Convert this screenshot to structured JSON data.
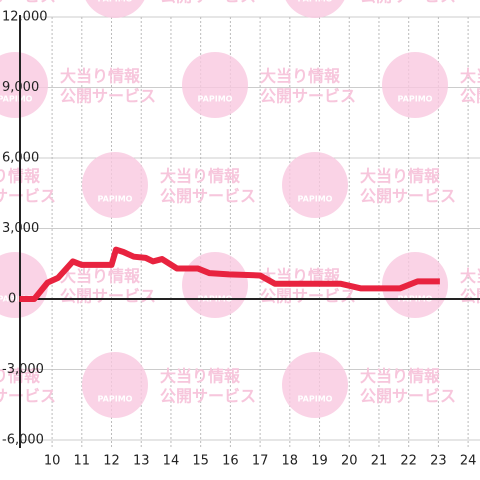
{
  "chart_data": {
    "type": "line",
    "x": [
      8.9,
      9.4,
      9.85,
      10.2,
      10.7,
      11.0,
      12.0,
      12.15,
      12.4,
      12.75,
      13.15,
      13.4,
      13.7,
      14.2,
      14.9,
      15.3,
      15.95,
      17.0,
      17.5,
      19.7,
      20.4,
      21.7,
      22.3,
      23.05
    ],
    "series": [
      {
        "color": "#e8233f",
        "values": [
          0,
          0,
          700,
          900,
          1600,
          1450,
          1450,
          2100,
          2000,
          1800,
          1750,
          1600,
          1700,
          1300,
          1300,
          1100,
          1050,
          1000,
          650,
          650,
          450,
          450,
          750,
          750
        ]
      }
    ],
    "xlim": [
      8.92,
      24.4
    ],
    "xticks": [
      10,
      11,
      12,
      13,
      14,
      15,
      16,
      17,
      18,
      19,
      20,
      21,
      22,
      23,
      24
    ],
    "ylim": [
      -6000,
      12000
    ],
    "yticks": [
      {
        "value": -6000,
        "label": "-6,000"
      },
      {
        "value": -3000,
        "label": "-3,000"
      },
      0,
      {
        "value": 3000,
        "label": "3,000"
      },
      {
        "value": 6000,
        "label": "6,000"
      },
      {
        "value": 9000,
        "label": "9,000"
      },
      {
        "value": 12000,
        "label": "12,000"
      }
    ],
    "grid": true,
    "watermark": {
      "logo": "PAPIMO",
      "line1": "大当り情報",
      "line2": "公開サービス"
    }
  }
}
